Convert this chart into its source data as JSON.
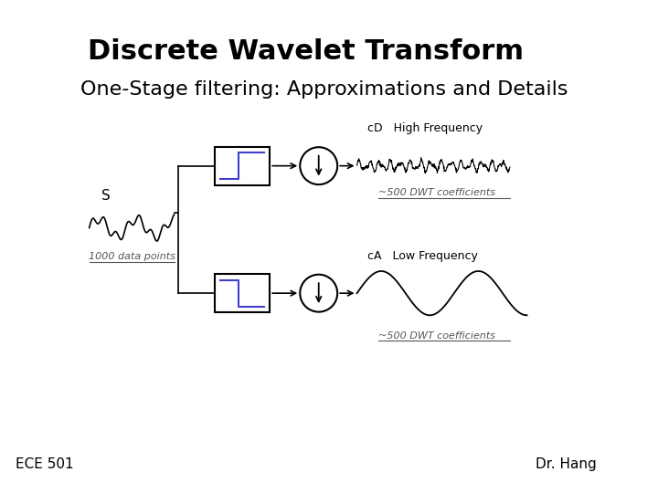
{
  "title": "Discrete Wavelet Transform",
  "subtitle": "One-Stage filtering: Approximations and Details",
  "footer_left": "ECE 501",
  "footer_right": "Dr. Hang",
  "bg_color": "#ffffff",
  "text_color": "#000000",
  "title_fontsize": 22,
  "subtitle_fontsize": 16,
  "footer_fontsize": 11,
  "signal_color": "#000000",
  "filter_line_color": "#4040cc",
  "annotation_color": "#555555"
}
